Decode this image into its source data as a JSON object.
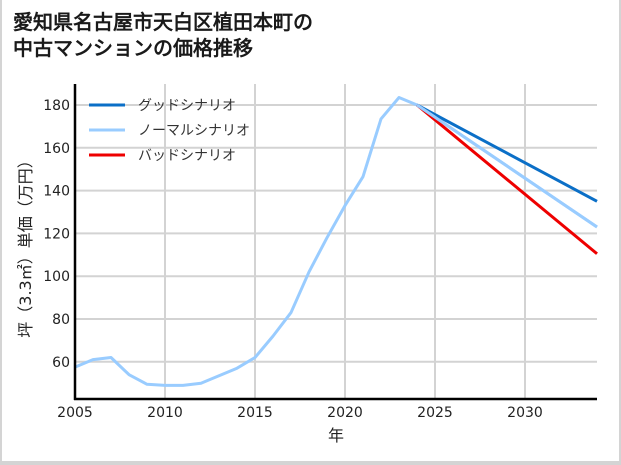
{
  "title": {
    "line1": "愛知県名古屋市天白区植田本町の",
    "line2": "中古マンションの価格推移"
  },
  "colors": {
    "good": "#0b6fc7",
    "normal": "#99ccff",
    "bad": "#ee0000",
    "grid": "#d3d3d3",
    "axis": "#000000"
  },
  "chart_data": {
    "type": "line",
    "title": "愛知県名古屋市天白区植田本町の中古マンションの価格推移",
    "xlabel": "年",
    "ylabel": "坪（3.3㎡）単価（万円）",
    "xlim": [
      2005,
      2034
    ],
    "ylim": [
      42,
      188
    ],
    "x_ticks": [
      2005,
      2010,
      2015,
      2020,
      2025,
      2030
    ],
    "y_ticks": [
      60,
      80,
      100,
      120,
      140,
      160,
      180
    ],
    "grid": true,
    "legend_position": "upper left",
    "series": [
      {
        "name": "グッドシナリオ",
        "color": "#0b6fc7",
        "x": [
          2024,
          2034
        ],
        "values": [
          180.0,
          135.0
        ]
      },
      {
        "name": "ノーマルシナリオ",
        "color": "#99ccff",
        "x": [
          2005,
          2006,
          2007,
          2008,
          2009,
          2010,
          2011,
          2012,
          2013,
          2014,
          2015,
          2016,
          2017,
          2018,
          2019,
          2020,
          2021,
          2022,
          2023,
          2024,
          2034
        ],
        "values": [
          57.5,
          61.0,
          62.0,
          54.0,
          49.5,
          49.0,
          49.0,
          50.0,
          53.5,
          57.0,
          62.0,
          72.0,
          83.0,
          102.0,
          118.0,
          133.0,
          146.5,
          173.5,
          183.5,
          180.0,
          123.0
        ]
      },
      {
        "name": "バッドシナリオ",
        "color": "#ee0000",
        "x": [
          2024,
          2034
        ],
        "values": [
          180.0,
          110.5
        ]
      }
    ]
  }
}
